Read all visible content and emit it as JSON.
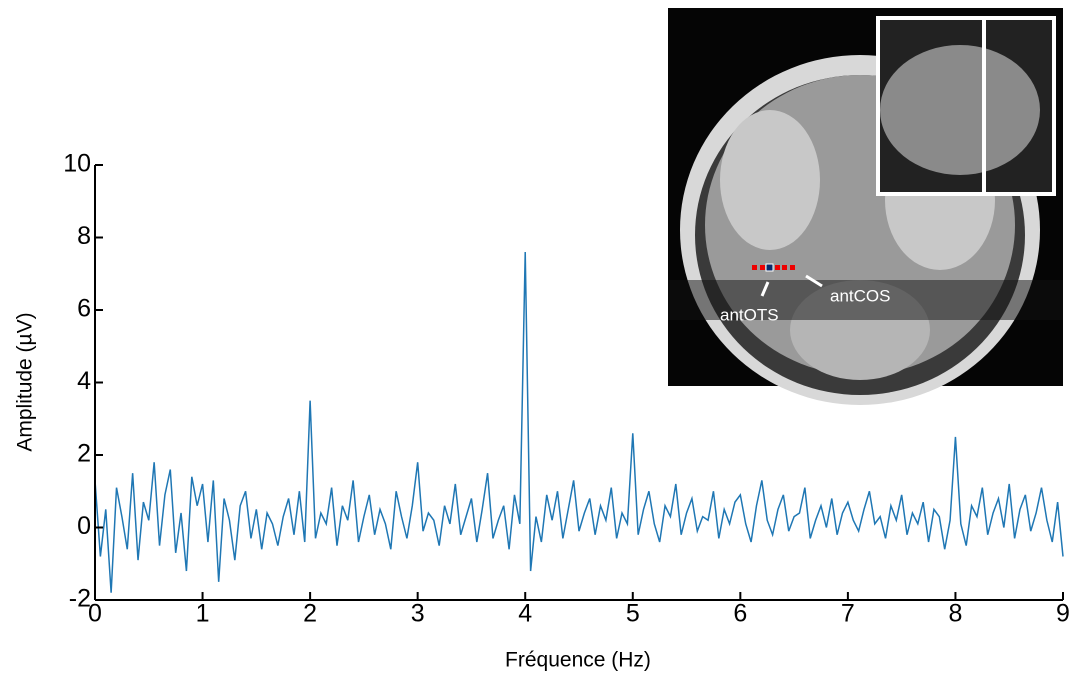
{
  "chart_data": {
    "type": "line",
    "xlabel": "Fréquence (Hz)",
    "ylabel": "Amplitude (µV)",
    "color": "#1f77b4",
    "xlim": [
      0,
      9
    ],
    "xticks": [
      0,
      1,
      2,
      3,
      4,
      5,
      6,
      7,
      8,
      9
    ],
    "ylim": [
      -2,
      10
    ],
    "yticks": [
      -2,
      0,
      2,
      4,
      6,
      8,
      10
    ],
    "x": [
      0,
      0.05,
      0.1,
      0.15,
      0.2,
      0.25,
      0.3,
      0.35,
      0.4,
      0.45,
      0.5,
      0.55,
      0.6,
      0.65,
      0.7,
      0.75,
      0.8,
      0.85,
      0.9,
      0.95,
      1,
      1.05,
      1.1,
      1.15,
      1.2,
      1.25,
      1.3,
      1.35,
      1.4,
      1.45,
      1.5,
      1.55,
      1.6,
      1.65,
      1.7,
      1.75,
      1.8,
      1.85,
      1.9,
      1.95,
      2,
      2.05,
      2.1,
      2.15,
      2.2,
      2.25,
      2.3,
      2.35,
      2.4,
      2.45,
      2.5,
      2.55,
      2.6,
      2.65,
      2.7,
      2.75,
      2.8,
      2.85,
      2.9,
      2.95,
      3,
      3.05,
      3.1,
      3.15,
      3.2,
      3.25,
      3.3,
      3.35,
      3.4,
      3.45,
      3.5,
      3.55,
      3.6,
      3.65,
      3.7,
      3.75,
      3.8,
      3.85,
      3.9,
      3.95,
      4,
      4.05,
      4.1,
      4.15,
      4.2,
      4.25,
      4.3,
      4.35,
      4.4,
      4.45,
      4.5,
      4.55,
      4.6,
      4.65,
      4.7,
      4.75,
      4.8,
      4.85,
      4.9,
      4.95,
      5,
      5.05,
      5.1,
      5.15,
      5.2,
      5.25,
      5.3,
      5.35,
      5.4,
      5.45,
      5.5,
      5.55,
      5.6,
      5.65,
      5.7,
      5.75,
      5.8,
      5.85,
      5.9,
      5.95,
      6,
      6.05,
      6.1,
      6.15,
      6.2,
      6.25,
      6.3,
      6.35,
      6.4,
      6.45,
      6.5,
      6.55,
      6.6,
      6.65,
      6.7,
      6.75,
      6.8,
      6.85,
      6.9,
      6.95,
      7,
      7.05,
      7.1,
      7.15,
      7.2,
      7.25,
      7.3,
      7.35,
      7.4,
      7.45,
      7.5,
      7.55,
      7.6,
      7.65,
      7.7,
      7.75,
      7.8,
      7.85,
      7.9,
      7.95,
      8,
      8.05,
      8.1,
      8.15,
      8.2,
      8.25,
      8.3,
      8.35,
      8.4,
      8.45,
      8.5,
      8.55,
      8.6,
      8.65,
      8.7,
      8.75,
      8.8,
      8.85,
      8.9,
      8.95,
      9
    ],
    "values": [
      1.3,
      -0.8,
      0.5,
      -1.8,
      1.1,
      0.3,
      -0.6,
      1.5,
      -0.9,
      0.7,
      0.2,
      1.8,
      -0.5,
      0.9,
      1.6,
      -0.7,
      0.4,
      -1.2,
      1.4,
      0.6,
      1.2,
      -0.4,
      1.3,
      -1.5,
      0.8,
      0.2,
      -0.9,
      0.6,
      1.0,
      -0.3,
      0.5,
      -0.6,
      0.4,
      0.1,
      -0.5,
      0.3,
      0.8,
      -0.2,
      1.0,
      -0.4,
      3.5,
      -0.3,
      0.4,
      0.1,
      1.1,
      -0.5,
      0.6,
      0.2,
      1.3,
      -0.4,
      0.3,
      0.9,
      -0.2,
      0.5,
      0.1,
      -0.6,
      1.0,
      0.3,
      -0.3,
      0.6,
      1.8,
      -0.1,
      0.4,
      0.2,
      -0.5,
      0.6,
      0.1,
      1.2,
      -0.2,
      0.3,
      0.8,
      -0.4,
      0.5,
      1.5,
      -0.3,
      0.2,
      0.6,
      -0.6,
      0.9,
      0.1,
      7.6,
      -1.2,
      0.3,
      -0.4,
      0.9,
      0.2,
      1.0,
      -0.3,
      0.5,
      1.3,
      -0.1,
      0.4,
      0.8,
      -0.2,
      0.6,
      0.2,
      1.1,
      -0.3,
      0.4,
      0.1,
      2.6,
      -0.2,
      0.5,
      1.0,
      0.1,
      -0.4,
      0.6,
      0.3,
      1.2,
      -0.2,
      0.4,
      0.8,
      -0.1,
      0.3,
      0.2,
      1.0,
      -0.3,
      0.5,
      0.1,
      0.7,
      0.9,
      0.1,
      -0.4,
      0.6,
      1.3,
      0.2,
      -0.2,
      0.5,
      0.9,
      -0.1,
      0.3,
      0.4,
      1.1,
      -0.3,
      0.2,
      0.6,
      0.0,
      0.8,
      -0.2,
      0.4,
      0.7,
      0.2,
      -0.1,
      0.5,
      1.0,
      0.1,
      0.3,
      -0.3,
      0.6,
      0.2,
      0.9,
      -0.2,
      0.4,
      0.1,
      0.7,
      -0.4,
      0.5,
      0.3,
      -0.6,
      0.2,
      2.5,
      0.1,
      -0.5,
      0.6,
      0.3,
      1.1,
      -0.2,
      0.4,
      0.8,
      0.0,
      1.2,
      -0.3,
      0.5,
      0.9,
      -0.1,
      0.4,
      1.1,
      0.2,
      -0.4,
      0.7,
      -0.8
    ]
  },
  "inset": {
    "labels": [
      "antOTS",
      "antCOS"
    ]
  }
}
